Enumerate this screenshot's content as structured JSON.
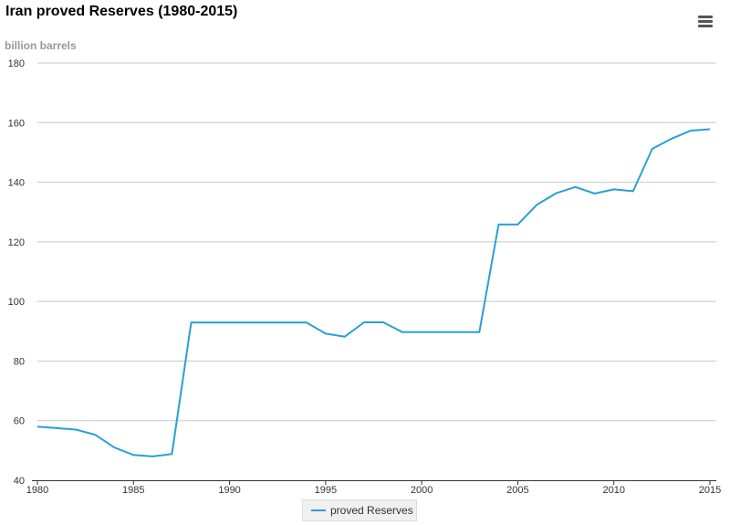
{
  "chart_data": {
    "type": "line",
    "title": "Iran proved Reserves (1980-2015)",
    "ylabel": "billion barrels",
    "xlabel": "",
    "ylim": [
      40,
      180
    ],
    "xlim": [
      1980,
      2015
    ],
    "yticks": [
      "40",
      "60",
      "80",
      "100",
      "120",
      "140",
      "160",
      "180"
    ],
    "xticks": [
      "1980",
      "1985",
      "1990",
      "1995",
      "2000",
      "2005",
      "2010",
      "2015"
    ],
    "grid": true,
    "legend_position": "bottom-center",
    "series": [
      {
        "name": "proved Reserves",
        "color": "#2a9fd6",
        "x": [
          1980,
          1981,
          1982,
          1983,
          1984,
          1985,
          1986,
          1987,
          1988,
          1989,
          1990,
          1991,
          1992,
          1993,
          1994,
          1995,
          1996,
          1997,
          1998,
          1999,
          2000,
          2001,
          2002,
          2003,
          2004,
          2005,
          2006,
          2007,
          2008,
          2009,
          2010,
          2011,
          2012,
          2013,
          2014,
          2015
        ],
        "values": [
          58.0,
          57.5,
          57.0,
          55.3,
          51.0,
          48.5,
          48.0,
          48.8,
          92.9,
          92.9,
          92.9,
          92.9,
          92.9,
          92.9,
          92.9,
          89.2,
          88.2,
          93.0,
          93.0,
          89.7,
          89.7,
          89.7,
          89.7,
          89.7,
          125.8,
          125.8,
          132.5,
          136.3,
          138.4,
          136.2,
          137.6,
          137.0,
          151.2,
          154.6,
          157.3,
          157.8
        ]
      }
    ]
  },
  "menu": {
    "icon": "hamburger-menu-icon"
  }
}
